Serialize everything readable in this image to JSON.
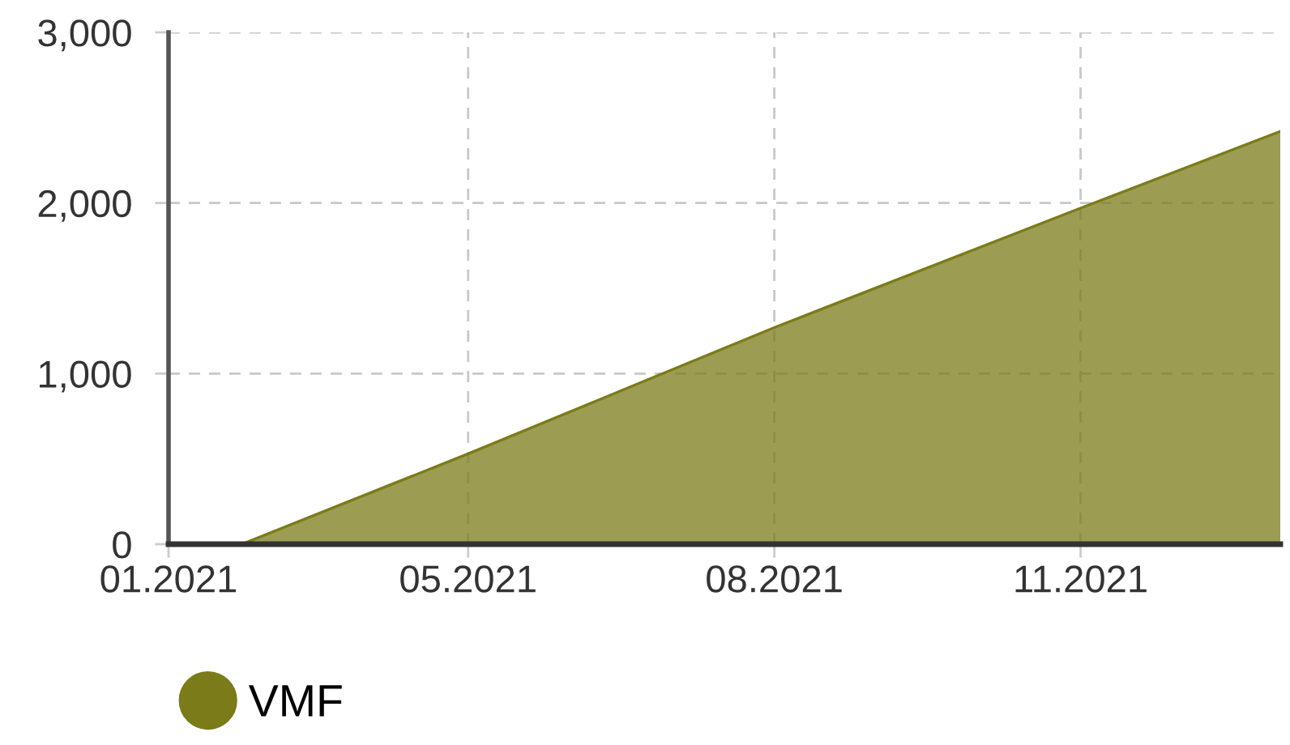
{
  "chart_data": {
    "type": "area",
    "x": [
      "2021-01-31",
      "2021-02-22",
      "2021-05-01",
      "2021-08-01",
      "2021-11-01",
      "2021-12-31"
    ],
    "series": [
      {
        "name": "VMF",
        "color": "#7b7b1a",
        "values": [
          0,
          0,
          530,
          1270,
          1970,
          2420
        ]
      }
    ],
    "xlim": [
      "2021-01-31",
      "2021-12-31"
    ],
    "xticks": [
      {
        "value": "2021-01-31",
        "label": "01.2021"
      },
      {
        "value": "2021-05-01",
        "label": "05.2021"
      },
      {
        "value": "2021-08-01",
        "label": "08.2021"
      },
      {
        "value": "2021-11-01",
        "label": "11.2021"
      }
    ],
    "ylim": [
      0,
      3000
    ],
    "yticks": [
      0,
      {
        "value": 1000,
        "label": "1,000"
      },
      {
        "value": 2000,
        "label": "2,000"
      },
      {
        "value": 3000,
        "label": "3,000"
      }
    ],
    "grid": true,
    "legend": "bottom"
  }
}
